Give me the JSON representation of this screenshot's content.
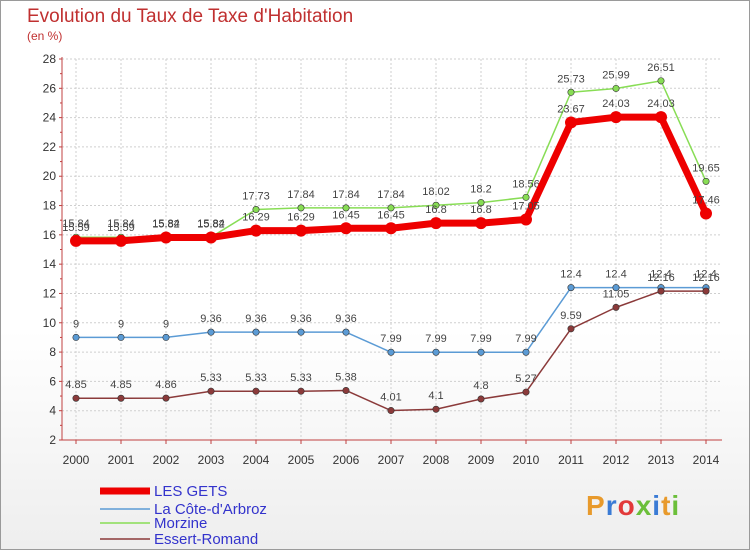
{
  "page": {
    "title": "Evolution du Taux de Taxe d'Habitation",
    "subtitle": "(en %)"
  },
  "logo": {
    "text": "Proxiti",
    "colors": [
      "#e89a2c",
      "#3a7bd5",
      "#e23a3a",
      "#6bbf3a",
      "#3a7bd5",
      "#e89a2c",
      "#6bbf3a"
    ]
  },
  "chart_data": {
    "type": "line",
    "title": "Evolution du Taux de Taxe d'Habitation",
    "ylabel": "(en %)",
    "xlabel": "",
    "x": [
      "2000",
      "2001",
      "2002",
      "2003",
      "2004",
      "2005",
      "2006",
      "2007",
      "2008",
      "2009",
      "2010",
      "2011",
      "2012",
      "2013",
      "2014"
    ],
    "ylim": [
      2,
      28
    ],
    "yticks": [
      "2",
      "4",
      "6",
      "8",
      "10",
      "12",
      "14",
      "16",
      "18",
      "20",
      "22",
      "24",
      "26",
      "28"
    ],
    "grid": true,
    "legend": "bottom-left",
    "series": [
      {
        "name": "LES GETS",
        "color": "#ee0000",
        "values": [
          15.59,
          15.59,
          15.82,
          15.82,
          16.29,
          16.29,
          16.45,
          16.45,
          16.8,
          16.8,
          17.05,
          23.67,
          24.03,
          24.03,
          17.46
        ],
        "labels": [
          "15.59",
          "15.59",
          "15.82",
          "15.82",
          "16.29",
          "16.29",
          "16.45",
          "16.45",
          "16.8",
          "16.8",
          "17.05",
          "23.67",
          "24.03",
          "24.03",
          "17.46"
        ]
      },
      {
        "name": "La Côte-d'Arbroz",
        "color": "#5b9bd5",
        "values": [
          9,
          9,
          9,
          9.36,
          9.36,
          9.36,
          9.36,
          7.99,
          7.99,
          7.99,
          7.99,
          12.4,
          12.4,
          12.4,
          12.4
        ],
        "labels": [
          "9",
          "9",
          "9",
          "9.36",
          "9.36",
          "9.36",
          "9.36",
          "7.99",
          "7.99",
          "7.99",
          "7.99",
          "12.4",
          "12.4",
          "12.4",
          "12.4"
        ]
      },
      {
        "name": "Morzine",
        "color": "#88dd55",
        "values": [
          15.84,
          15.84,
          15.84,
          15.84,
          17.73,
          17.84,
          17.84,
          17.84,
          18.02,
          18.2,
          18.56,
          25.73,
          25.99,
          26.51,
          19.65
        ],
        "labels": [
          "15.84",
          "15.84",
          "15.84",
          "15.84",
          "17.73",
          "17.84",
          "17.84",
          "17.84",
          "18.02",
          "18.2",
          "18.56",
          "25.73",
          "25.99",
          "26.51",
          "19.65"
        ]
      },
      {
        "name": "Essert-Romand",
        "color": "#8b3a3a",
        "values": [
          4.85,
          4.85,
          4.86,
          5.33,
          5.33,
          5.33,
          5.38,
          4.01,
          4.1,
          4.8,
          5.27,
          9.59,
          11.05,
          12.16,
          12.16
        ],
        "labels": [
          "4.85",
          "4.85",
          "4.86",
          "5.33",
          "5.33",
          "5.33",
          "5.38",
          "4.01",
          "4.1",
          "4.8",
          "5.27",
          "9.59",
          "11.05",
          "12.16",
          "12.16"
        ]
      }
    ]
  }
}
